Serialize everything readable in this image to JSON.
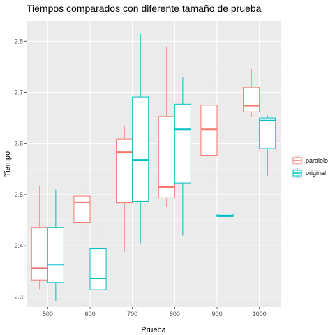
{
  "chart_data": {
    "type": "boxplot",
    "title": "Tiempos comparados con diferente tamaño de prueba",
    "xlabel": "Prueba",
    "ylabel": "Tiempo",
    "categories": [
      "500",
      "600",
      "700",
      "800",
      "900",
      "1000"
    ],
    "ylim": [
      2.28,
      2.84
    ],
    "yticks": [
      2.3,
      2.4,
      2.5,
      2.6,
      2.7,
      2.8
    ],
    "ytick_labels": [
      "2.3",
      "2.4",
      "2.5",
      "2.6",
      "2.7",
      "2.8"
    ],
    "legend_position": "right",
    "grid": true,
    "series": [
      {
        "name": "paralelo",
        "color": "#F8766D",
        "boxes": [
          {
            "min": 2.315,
            "q1": 2.333,
            "median": 2.356,
            "q3": 2.436,
            "max": 2.518
          },
          {
            "min": 2.41,
            "q1": 2.446,
            "median": 2.485,
            "q3": 2.497,
            "max": 2.51
          },
          {
            "min": 2.388,
            "q1": 2.484,
            "median": 2.583,
            "q3": 2.609,
            "max": 2.634
          },
          {
            "min": 2.476,
            "q1": 2.494,
            "median": 2.515,
            "q3": 2.653,
            "max": 2.79
          },
          {
            "min": 2.527,
            "q1": 2.577,
            "median": 2.628,
            "q3": 2.675,
            "max": 2.722
          },
          {
            "min": 2.653,
            "q1": 2.662,
            "median": 2.674,
            "q3": 2.71,
            "max": 2.746
          }
        ]
      },
      {
        "name": "original",
        "color": "#00BFC4",
        "boxes": [
          {
            "min": 2.292,
            "q1": 2.328,
            "median": 2.363,
            "q3": 2.436,
            "max": 2.51
          },
          {
            "min": 2.294,
            "q1": 2.314,
            "median": 2.336,
            "q3": 2.394,
            "max": 2.453
          },
          {
            "min": 2.405,
            "q1": 2.487,
            "median": 2.568,
            "q3": 2.691,
            "max": 2.814
          },
          {
            "min": 2.42,
            "q1": 2.523,
            "median": 2.628,
            "q3": 2.677,
            "max": 2.729
          },
          {
            "min": 2.456,
            "q1": 2.457,
            "median": 2.459,
            "q3": 2.462,
            "max": 2.465
          },
          {
            "min": 2.537,
            "q1": 2.59,
            "median": 2.645,
            "q3": 2.65,
            "max": 2.655
          }
        ]
      }
    ]
  }
}
